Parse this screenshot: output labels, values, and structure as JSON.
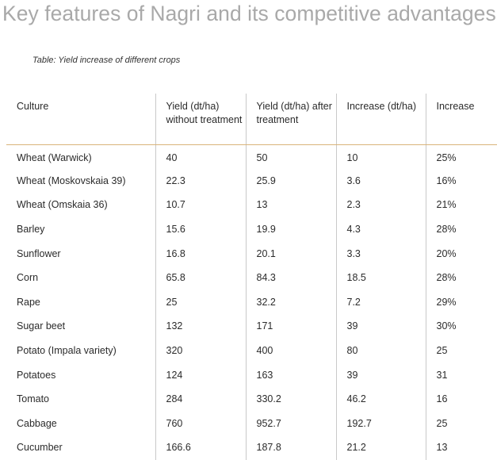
{
  "page": {
    "title": "Key features of Nagri and its competitive advantages",
    "caption": "Table: Yield increase of different crops"
  },
  "table": {
    "headers": [
      "Culture",
      "Yield (dt/ha) without treatment",
      "Yield (dt/ha) after treatment",
      "Increase (dt/ha)",
      "Increase"
    ],
    "rows": [
      [
        "Wheat (Warwick)",
        "40",
        "50",
        "10",
        "25%"
      ],
      [
        "Wheat (Moskovskaia 39)",
        "22.3",
        "25.9",
        "3.6",
        "16%"
      ],
      [
        "Wheat (Omskaia 36)",
        "10.7",
        "13",
        "2.3",
        "21%"
      ],
      [
        "Barley",
        "15.6",
        "19.9",
        "4.3",
        "28%"
      ],
      [
        "Sunflower",
        "16.8",
        "20.1",
        "3.3",
        "20%"
      ],
      [
        "Corn",
        "65.8",
        "84.3",
        "18.5",
        "28%"
      ],
      [
        "Rape",
        "25",
        "32.2",
        "7.2",
        "29%"
      ],
      [
        "Sugar beet",
        "132",
        "171",
        "39",
        "30%"
      ],
      [
        "Potato (Impala variety)",
        "320",
        "400",
        "80",
        "25"
      ],
      [
        "Potatoes",
        "124",
        "163",
        "39",
        "31"
      ],
      [
        "Tomato",
        "284",
        "330.2",
        "46.2",
        "16"
      ],
      [
        "Cabbage",
        "760",
        "952.7",
        "192.7",
        "25"
      ],
      [
        "Cucumber",
        "166.6",
        "187.8",
        "21.2",
        "13"
      ]
    ]
  }
}
